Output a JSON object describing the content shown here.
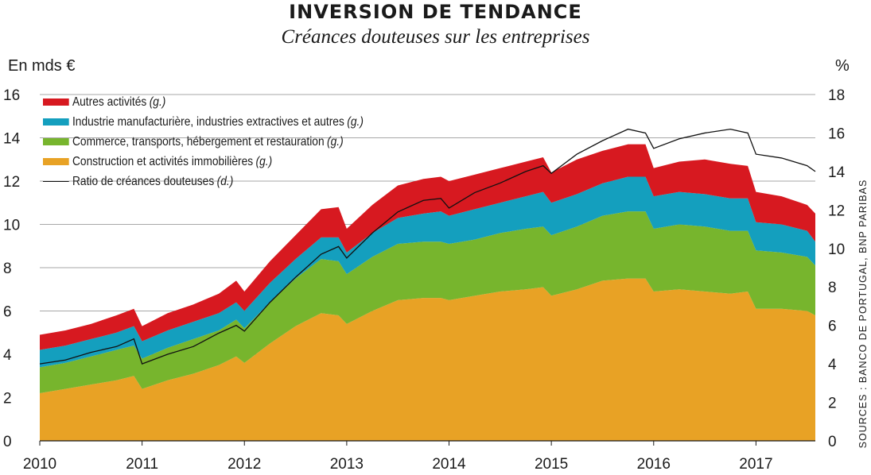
{
  "header": {
    "title": "INVERSION DE TENDANCE",
    "subtitle": "Créances douteuses sur les entreprises",
    "left_unit": "En mds €",
    "right_unit": "%",
    "source": "SOURCES : BANCO DE PORTUGAL, BNP PARIBAS"
  },
  "chart_data": {
    "type": "area",
    "title": "INVERSION DE TENDANCE",
    "subtitle": "Créances douteuses sur les entreprises",
    "stacked": true,
    "x_ticks": [
      "2010",
      "2011",
      "2012",
      "2013",
      "2014",
      "2015",
      "2016",
      "2017"
    ],
    "x_range": [
      2010.0,
      2017.58
    ],
    "y_left_label": "En mds €",
    "y_left_range": [
      0,
      16
    ],
    "y_left_ticks": [
      "0",
      "2",
      "4",
      "6",
      "8",
      "10",
      "12",
      "14",
      "16"
    ],
    "y_right_label": "%",
    "y_right_range": [
      0,
      18
    ],
    "y_right_ticks": [
      "0",
      "2",
      "4",
      "6",
      "8",
      "10",
      "12",
      "14",
      "16",
      "18"
    ],
    "grid": "horizontal",
    "legend_position": "top-left",
    "x": [
      2010.0,
      2010.25,
      2010.5,
      2010.75,
      2010.92,
      2011.0,
      2011.25,
      2011.5,
      2011.75,
      2011.92,
      2012.0,
      2012.25,
      2012.5,
      2012.75,
      2012.92,
      2013.0,
      2013.25,
      2013.5,
      2013.75,
      2013.92,
      2014.0,
      2014.25,
      2014.5,
      2014.75,
      2014.92,
      2015.0,
      2015.25,
      2015.5,
      2015.75,
      2015.92,
      2016.0,
      2016.25,
      2016.5,
      2016.75,
      2016.92,
      2017.0,
      2017.25,
      2017.5,
      2017.58
    ],
    "series": [
      {
        "name": "Construction et activités immobilières",
        "note": "(g.)",
        "axis": "left",
        "color": "#e8a225",
        "values": [
          2.2,
          2.4,
          2.6,
          2.8,
          3.0,
          2.4,
          2.8,
          3.1,
          3.5,
          3.9,
          3.6,
          4.5,
          5.3,
          5.9,
          5.8,
          5.4,
          6.0,
          6.5,
          6.6,
          6.6,
          6.5,
          6.7,
          6.9,
          7.0,
          7.1,
          6.7,
          7.0,
          7.4,
          7.5,
          7.5,
          6.9,
          7.0,
          6.9,
          6.8,
          6.9,
          6.1,
          6.1,
          6.0,
          5.8
        ]
      },
      {
        "name": "Commerce, transports, hébergement et restauration",
        "note": "(g.)",
        "axis": "left",
        "color": "#77b52d",
        "values": [
          1.2,
          1.2,
          1.3,
          1.4,
          1.4,
          1.4,
          1.5,
          1.6,
          1.6,
          1.7,
          1.6,
          1.9,
          2.2,
          2.5,
          2.5,
          2.3,
          2.5,
          2.6,
          2.6,
          2.6,
          2.6,
          2.6,
          2.7,
          2.8,
          2.8,
          2.8,
          2.9,
          3.0,
          3.1,
          3.1,
          2.9,
          3.0,
          3.0,
          2.9,
          2.8,
          2.7,
          2.6,
          2.5,
          2.3
        ]
      },
      {
        "name": "Industrie manufacturière, industries extractives et autres",
        "note": "(g.)",
        "axis": "left",
        "color": "#149fbe",
        "values": [
          0.8,
          0.8,
          0.8,
          0.8,
          0.9,
          0.8,
          0.8,
          0.8,
          0.8,
          0.8,
          0.8,
          0.9,
          0.9,
          1.0,
          1.1,
          1.0,
          1.1,
          1.2,
          1.3,
          1.4,
          1.3,
          1.4,
          1.4,
          1.5,
          1.6,
          1.5,
          1.5,
          1.5,
          1.6,
          1.6,
          1.5,
          1.5,
          1.5,
          1.5,
          1.5,
          1.3,
          1.3,
          1.2,
          1.1
        ]
      },
      {
        "name": "Autres activités",
        "note": "(g.)",
        "axis": "left",
        "color": "#d71920",
        "values": [
          0.7,
          0.7,
          0.7,
          0.8,
          0.8,
          0.7,
          0.8,
          0.8,
          0.9,
          1.0,
          0.9,
          1.0,
          1.1,
          1.3,
          1.4,
          1.1,
          1.3,
          1.5,
          1.6,
          1.6,
          1.6,
          1.6,
          1.6,
          1.6,
          1.6,
          1.4,
          1.6,
          1.5,
          1.5,
          1.5,
          1.3,
          1.4,
          1.6,
          1.6,
          1.5,
          1.4,
          1.3,
          1.2,
          1.3
        ]
      },
      {
        "name": "Ratio de créances douteuses",
        "note": "(d.)",
        "axis": "right",
        "type": "line",
        "color": "#111111",
        "values": [
          4.0,
          4.2,
          4.6,
          4.9,
          5.3,
          4.0,
          4.5,
          4.9,
          5.6,
          6.0,
          5.7,
          7.2,
          8.5,
          9.7,
          10.1,
          9.5,
          10.8,
          11.9,
          12.5,
          12.6,
          12.1,
          12.9,
          13.4,
          14.0,
          14.3,
          13.9,
          14.9,
          15.6,
          16.2,
          16.0,
          15.2,
          15.7,
          16.0,
          16.2,
          16.0,
          14.9,
          14.7,
          14.3,
          14.0
        ]
      }
    ]
  }
}
